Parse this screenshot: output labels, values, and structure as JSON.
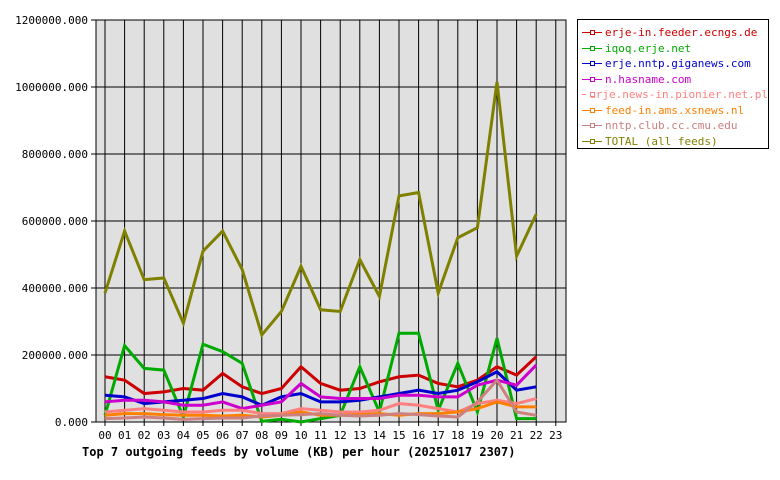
{
  "chart_data": {
    "type": "line",
    "title": "Top 7 outgoing feeds by volume (KB) per hour (20251017 2307)",
    "xlabel": "Top 7 outgoing feeds by volume (KB) per hour (20251017 2307)",
    "ylabel": "",
    "ylim": [
      0,
      1200000
    ],
    "yticks": [
      "0.000",
      "200000.000",
      "400000.000",
      "600000.000",
      "800000.000",
      "1000000.000",
      "1200000.000"
    ],
    "categories": [
      "00",
      "01",
      "02",
      "03",
      "04",
      "05",
      "06",
      "07",
      "08",
      "09",
      "10",
      "11",
      "12",
      "13",
      "14",
      "15",
      "16",
      "17",
      "18",
      "19",
      "20",
      "21",
      "22",
      "23"
    ],
    "grid": true,
    "legend_position": "right",
    "series": [
      {
        "name": "erje-in.feeder.ecngs.de",
        "color": "#cc0000",
        "values": [
          135000,
          125000,
          85000,
          90000,
          100000,
          95000,
          145000,
          105000,
          85000,
          100000,
          165000,
          115000,
          95000,
          100000,
          120000,
          135000,
          140000,
          115000,
          105000,
          125000,
          165000,
          140000,
          195000
        ]
      },
      {
        "name": "iqoq.erje.net",
        "color": "#00aa00",
        "values": [
          20000,
          228000,
          160000,
          155000,
          15000,
          232000,
          210000,
          175000,
          2000,
          8000,
          0,
          10000,
          20000,
          165000,
          30000,
          265000,
          265000,
          35000,
          175000,
          30000,
          250000,
          10000,
          10000
        ]
      },
      {
        "name": "erje.nntp.giganews.com",
        "color": "#0000cc",
        "values": [
          80000,
          75000,
          55000,
          60000,
          65000,
          70000,
          85000,
          75000,
          50000,
          75000,
          85000,
          60000,
          60000,
          65000,
          75000,
          85000,
          95000,
          85000,
          95000,
          120000,
          150000,
          95000,
          105000
        ]
      },
      {
        "name": "n.hasname.com",
        "color": "#cc00cc",
        "values": [
          60000,
          65000,
          65000,
          60000,
          50000,
          50000,
          60000,
          40000,
          50000,
          60000,
          115000,
          75000,
          70000,
          70000,
          70000,
          80000,
          80000,
          75000,
          75000,
          110000,
          125000,
          110000,
          170000
        ]
      },
      {
        "name": "erje.news-in.pionier.net.pl",
        "color": "#ff8080",
        "values": [
          30000,
          35000,
          40000,
          35000,
          30000,
          30000,
          35000,
          35000,
          25000,
          25000,
          40000,
          35000,
          30000,
          30000,
          35000,
          55000,
          50000,
          40000,
          30000,
          55000,
          65000,
          55000,
          70000
        ]
      },
      {
        "name": "feed-in.ams.xsnews.nl",
        "color": "#ff8000",
        "values": [
          20000,
          25000,
          25000,
          22000,
          20000,
          20000,
          18000,
          20000,
          15000,
          20000,
          30000,
          20000,
          20000,
          22000,
          25000,
          20000,
          25000,
          25000,
          30000,
          40000,
          60000,
          45000,
          45000
        ]
      },
      {
        "name": "nntp.club.cc.cmu.edu",
        "color": "#cc8080",
        "values": [
          10000,
          12000,
          15000,
          12000,
          8000,
          10000,
          12000,
          12000,
          18000,
          20000,
          22000,
          25000,
          20000,
          18000,
          20000,
          25000,
          22000,
          18000,
          15000,
          60000,
          125000,
          30000,
          20000
        ]
      },
      {
        "name": "TOTAL (all feeds)",
        "color": "#808000",
        "values": [
          385000,
          570000,
          425000,
          430000,
          295000,
          510000,
          570000,
          455000,
          260000,
          330000,
          465000,
          335000,
          330000,
          485000,
          375000,
          675000,
          685000,
          385000,
          550000,
          580000,
          1015000,
          495000,
          620000
        ]
      }
    ]
  },
  "legend": {
    "items": [
      {
        "label": "erje-in.feeder.ecngs.de",
        "color": "#cc0000"
      },
      {
        "label": "iqoq.erje.net",
        "color": "#00aa00"
      },
      {
        "label": "erje.nntp.giganews.com",
        "color": "#0000cc"
      },
      {
        "label": "n.hasname.com",
        "color": "#cc00cc"
      },
      {
        "label": "erje.news-in.pionier.net.pl",
        "color": "#ff8080"
      },
      {
        "label": "feed-in.ams.xsnews.nl",
        "color": "#ff8000"
      },
      {
        "label": "nntp.club.cc.cmu.edu",
        "color": "#cc8080"
      },
      {
        "label": "TOTAL (all feeds)",
        "color": "#808000"
      }
    ]
  }
}
